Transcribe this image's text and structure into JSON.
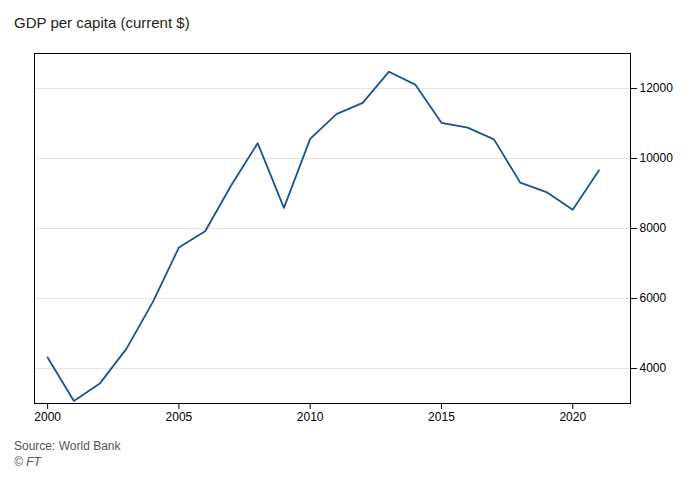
{
  "chart_data": {
    "type": "line",
    "title": "GDP per capita (current $)",
    "annotations": [
      "Source: World Bank",
      "© FT"
    ],
    "x": [
      2000,
      2001,
      2002,
      2003,
      2004,
      2005,
      2006,
      2007,
      2008,
      2009,
      2010,
      2011,
      2012,
      2013,
      2014,
      2015,
      2016,
      2017,
      2018,
      2019,
      2020,
      2021
    ],
    "values": [
      4316,
      3074,
      3581,
      4560,
      5890,
      7456,
      7921,
      9243,
      10438,
      8590,
      10560,
      11268,
      11588,
      12480,
      12112,
      11019,
      10883,
      10546,
      9311,
      9042,
      8538,
      9661
    ],
    "color": "#1a5490",
    "xlim": [
      1999.5,
      2022.2
    ],
    "xticks": [
      2000,
      2005,
      2010,
      2015,
      2020
    ],
    "ylim": [
      3000,
      13000
    ],
    "yticks": [
      4000,
      6000,
      8000,
      10000,
      12000
    ],
    "grid": true
  }
}
